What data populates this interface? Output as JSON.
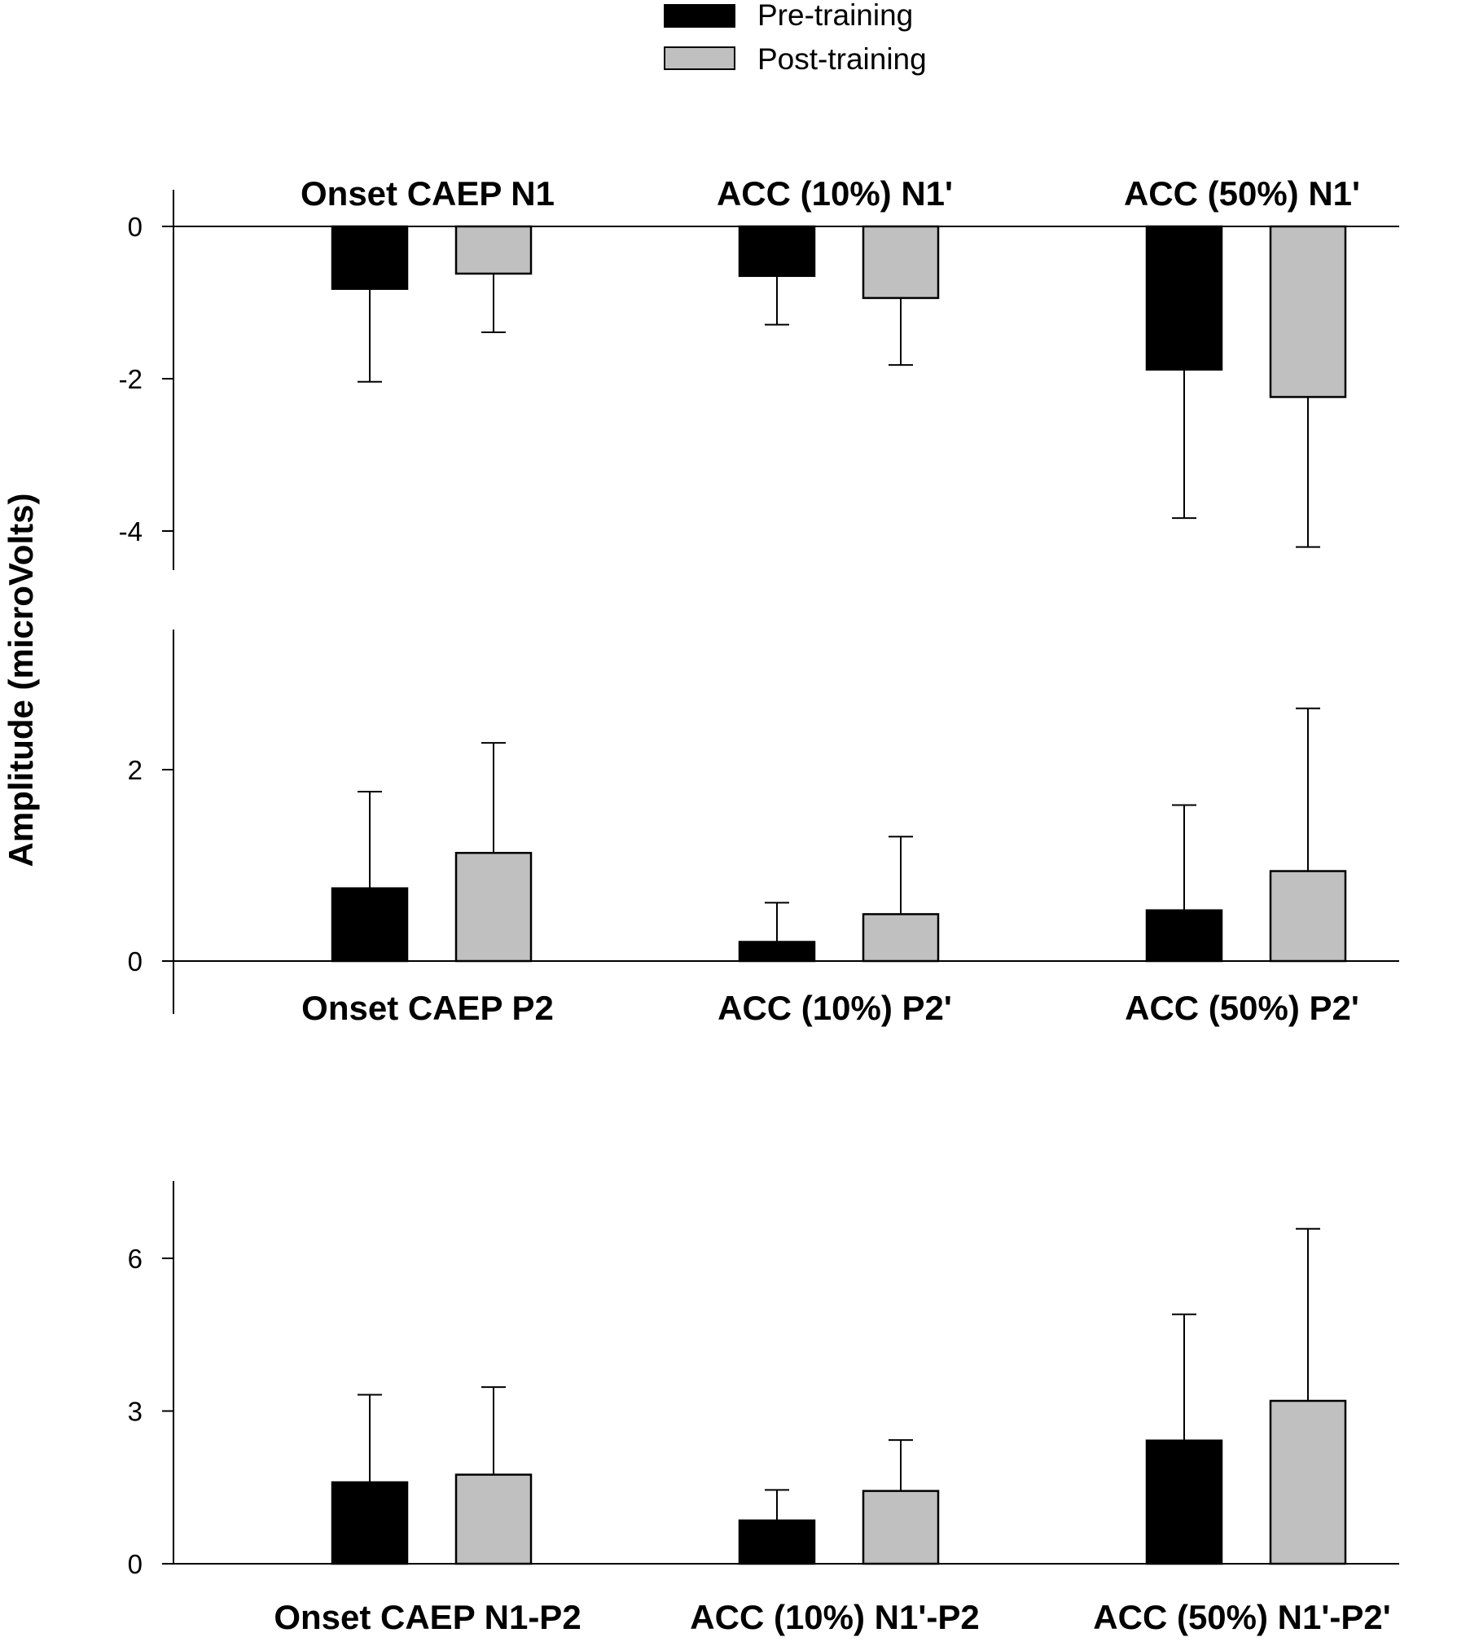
{
  "chart_data": {
    "type": "bar",
    "ylabel": "Amplitude (microVolts)",
    "legend": [
      {
        "name": "Pre-training",
        "color": "#000000"
      },
      {
        "name": "Post-training",
        "color": "#c0c0c0"
      }
    ],
    "series_names": [
      "Pre-training",
      "Post-training"
    ],
    "panels": [
      {
        "ylim": [
          -4.5,
          0.5
        ],
        "yticks": [
          0,
          -2,
          -4
        ],
        "ytick_labels": [
          "0",
          "-2",
          "-4"
        ],
        "categories": [
          "Onset CAEP N1",
          "ACC (10%) N1'",
          "ACC (50%) N1'"
        ],
        "labels_position": "top",
        "series": [
          {
            "name": "Pre-training",
            "values": [
              -0.82,
              -0.65,
              -1.88
            ],
            "errors": [
              1.22,
              0.64,
              1.95
            ]
          },
          {
            "name": "Post-training",
            "values": [
              -0.62,
              -0.94,
              -2.24
            ],
            "errors": [
              0.77,
              0.88,
              1.97
            ]
          }
        ]
      },
      {
        "ylim": [
          -0.5,
          3.5
        ],
        "yticks": [
          0,
          2
        ],
        "ytick_labels": [
          "0",
          "2"
        ],
        "categories": [
          "Onset CAEP P2",
          "ACC (10%) P2'",
          "ACC (50%) P2'"
        ],
        "labels_position": "bottom",
        "series": [
          {
            "name": "Pre-training",
            "values": [
              0.76,
              0.2,
              0.53
            ],
            "errors": [
              1.01,
              0.41,
              1.1
            ]
          },
          {
            "name": "Post-training",
            "values": [
              1.13,
              0.49,
              0.94
            ],
            "errors": [
              1.15,
              0.81,
              1.7
            ]
          }
        ]
      },
      {
        "ylim": [
          0,
          7.5
        ],
        "yticks": [
          0,
          3,
          6
        ],
        "ytick_labels": [
          "0",
          "3",
          "6"
        ],
        "categories": [
          "Onset CAEP N1-P2",
          "ACC (10%) N1'-P2",
          "ACC (50%) N1'-P2'"
        ],
        "labels_position": "bottom",
        "series": [
          {
            "name": "Pre-training",
            "values": [
              1.6,
              0.85,
              2.42
            ],
            "errors": [
              1.72,
              0.6,
              2.48
            ]
          },
          {
            "name": "Post-training",
            "values": [
              1.75,
              1.43,
              3.2
            ],
            "errors": [
              1.72,
              1.0,
              3.38
            ]
          }
        ]
      }
    ]
  }
}
